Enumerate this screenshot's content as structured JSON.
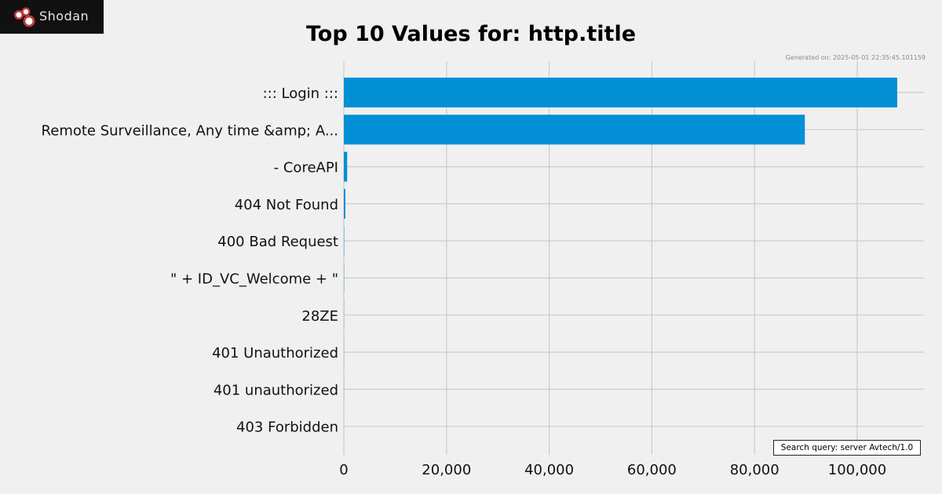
{
  "brand": {
    "name": "Shodan",
    "colors": [
      "#be3a3a",
      "#ffffff"
    ]
  },
  "generated_text": "Generated on: 2025-05-01 22:35:45.101159",
  "search_query": "Search query: server Avtech/1.0",
  "chart_data": {
    "type": "bar",
    "orientation": "horizontal",
    "title": "Top 10 Values for: http.title",
    "categories": [
      "::: Login :::",
      "Remote Surveillance, Any time &amp; A...",
      "- CoreAPI",
      "404 Not Found",
      "400 Bad Request",
      "\" + ID_VC_Welcome + \"",
      "28ZE",
      "401 Unauthorized",
      "401 unauthorized",
      "403 Forbidden"
    ],
    "values": [
      107800,
      89800,
      650,
      300,
      60,
      40,
      30,
      20,
      15,
      10
    ],
    "xlim": [
      0,
      113000
    ],
    "xticks": [
      0,
      20000,
      40000,
      60000,
      80000,
      100000
    ],
    "xtick_labels": [
      "0",
      "20,000",
      "40,000",
      "60,000",
      "80,000",
      "100,000"
    ],
    "bar_color": "#038fd6",
    "grid": true,
    "xlabel": "",
    "ylabel": ""
  }
}
